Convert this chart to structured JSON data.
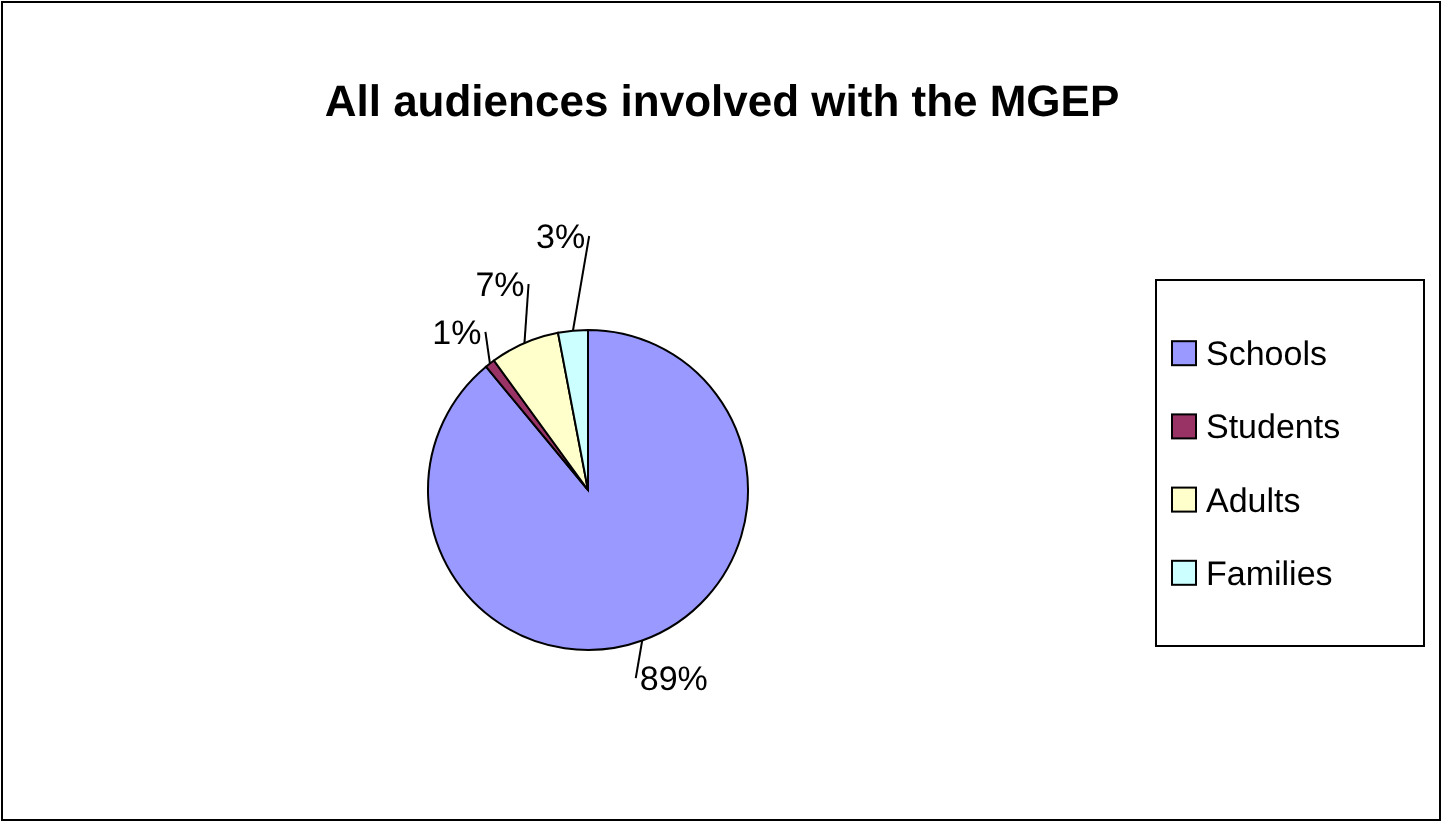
{
  "chart_data": {
    "type": "pie",
    "title": "All audiences involved with the MGEP",
    "categories": [
      "Schools",
      "Students",
      "Adults",
      "Families"
    ],
    "values": [
      89,
      1,
      7,
      3
    ],
    "colors": [
      "#9999ff",
      "#993366",
      "#ffffcc",
      "#ccffff"
    ],
    "value_labels": [
      "89%",
      "1%",
      "7%",
      "3%"
    ],
    "legend": "right"
  }
}
